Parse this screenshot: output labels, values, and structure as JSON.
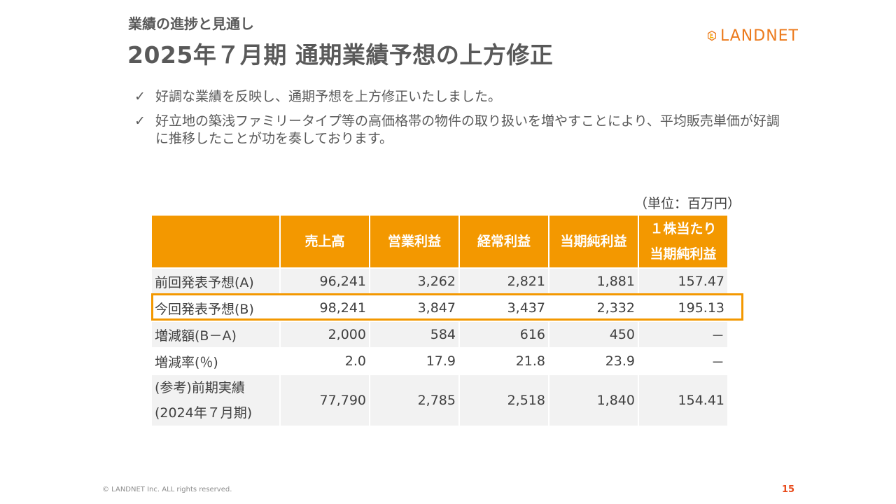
{
  "header": {
    "subtitle": "業績の進捗と見通し",
    "title": "2025年７月期 通期業績予想の上方修正",
    "logo_text": "LANDNET",
    "logo_color": "#ec7a1c"
  },
  "bullets": [
    {
      "mark": "✓",
      "text": "好調な業績を反映し、通期予想を上方修正いたしました。"
    },
    {
      "mark": "✓",
      "text": "好立地の築浅ファミリータイプ等の高価格帯の物件の取り扱いを増やすことにより、平均販売単価が好調に推移したことが功を奏しております。"
    }
  ],
  "table": {
    "unit": "（単位：百万円）",
    "headers": [
      "",
      "売上高",
      "営業利益",
      "経常利益",
      "当期純利益",
      "１株当たり\n当期純利益"
    ],
    "rows": [
      [
        "前回発表予想(A)",
        "96,241",
        "3,262",
        "2,821",
        "1,881",
        "157.47"
      ],
      [
        "今回発表予想(B)",
        "98,241",
        "3,847",
        "3,437",
        "2,332",
        "195.13"
      ],
      [
        "増減額(B－A)",
        "2,000",
        "584",
        "616",
        "450",
        "－"
      ],
      [
        "増減率(％)",
        "2.0",
        "17.9",
        "21.8",
        "23.9",
        "－"
      ],
      [
        "(参考)前期実績\n(2024年７月期)",
        "77,790",
        "2,785",
        "2,518",
        "1,840",
        "154.41"
      ]
    ],
    "header_color": "#f39800"
  },
  "footer": {
    "copyright": "© LANDNET Inc. ALL rights reserved.",
    "page": "15"
  }
}
